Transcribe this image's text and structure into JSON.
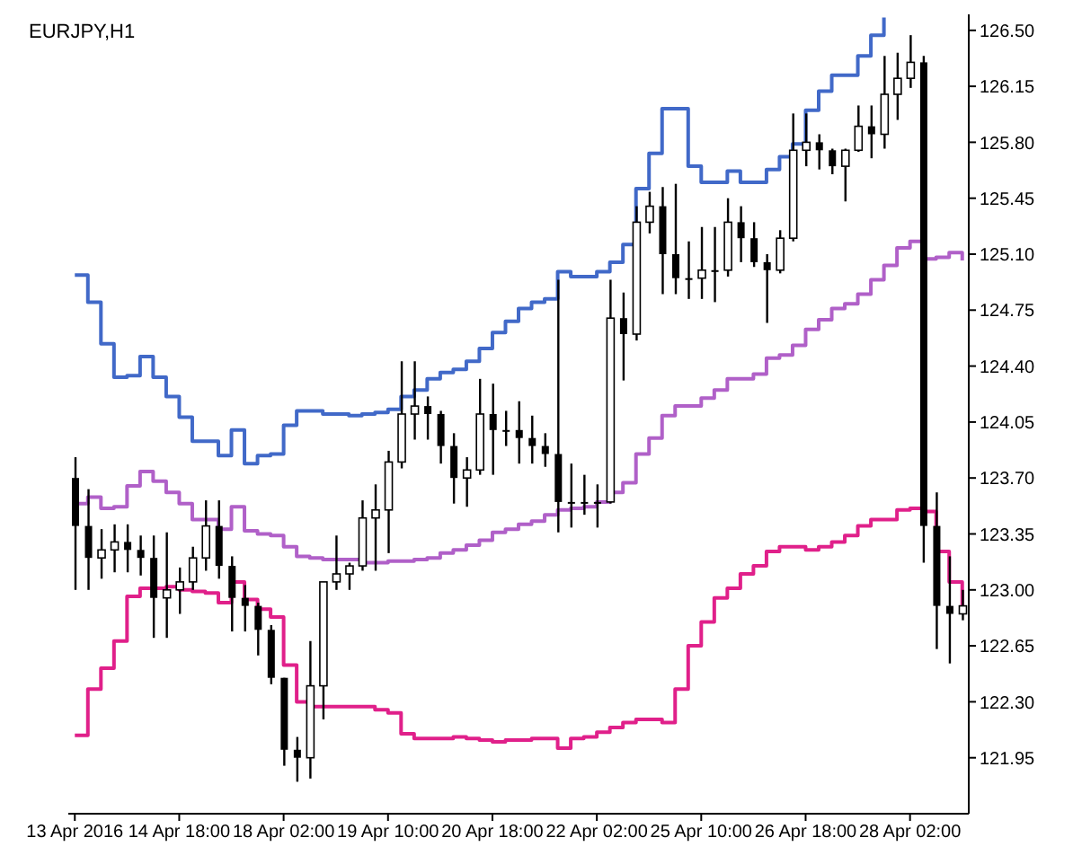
{
  "chart_data": {
    "type": "candlestick",
    "title": "EURJPY,H1",
    "color": "#000000",
    "categories": [
      "13 Apr 2016",
      null,
      null,
      null,
      null,
      null,
      null,
      null,
      "14 Apr 18:00",
      null,
      null,
      null,
      null,
      null,
      null,
      null,
      "18 Apr 02:00",
      null,
      null,
      null,
      null,
      null,
      null,
      null,
      "19 Apr 10:00",
      null,
      null,
      null,
      null,
      null,
      null,
      null,
      "20 Apr 18:00",
      null,
      null,
      null,
      null,
      null,
      null,
      null,
      "22 Apr 02:00",
      null,
      null,
      null,
      null,
      null,
      null,
      null,
      "25 Apr 10:00",
      null,
      null,
      null,
      null,
      null,
      null,
      null,
      "26 Apr 18:00",
      null,
      null,
      null,
      null,
      null,
      null,
      null,
      "28 Apr 02:00",
      null,
      null,
      null,
      null
    ],
    "ohlc": [
      [
        123.7,
        123.83,
        123.0,
        123.4
      ],
      [
        123.4,
        123.63,
        123.0,
        123.2
      ],
      [
        123.2,
        123.38,
        123.07,
        123.25
      ],
      [
        123.25,
        123.41,
        123.11,
        123.3
      ],
      [
        123.3,
        123.41,
        123.11,
        123.25
      ],
      [
        123.25,
        123.34,
        123.09,
        123.2
      ],
      [
        123.2,
        123.34,
        122.7,
        122.95
      ],
      [
        122.95,
        123.36,
        122.7,
        123.0
      ],
      [
        123.0,
        123.14,
        122.85,
        123.05
      ],
      [
        123.05,
        123.27,
        123.0,
        123.2
      ],
      [
        123.2,
        123.56,
        123.12,
        123.4
      ],
      [
        123.4,
        123.56,
        123.07,
        123.15
      ],
      [
        123.15,
        123.21,
        122.74,
        122.95
      ],
      [
        122.95,
        123.03,
        122.74,
        122.9
      ],
      [
        122.9,
        122.92,
        122.59,
        122.75
      ],
      [
        122.75,
        122.78,
        122.41,
        122.45
      ],
      [
        122.45,
        122.45,
        121.9,
        122.0
      ],
      [
        122.0,
        122.08,
        121.8,
        121.95
      ],
      [
        121.95,
        122.68,
        121.82,
        122.4
      ],
      [
        122.4,
        123.05,
        122.19,
        123.05
      ],
      [
        123.05,
        123.34,
        123.0,
        123.1
      ],
      [
        123.1,
        123.17,
        123.0,
        123.15
      ],
      [
        123.15,
        123.56,
        123.12,
        123.45
      ],
      [
        123.45,
        123.66,
        123.12,
        123.5
      ],
      [
        123.5,
        123.87,
        123.23,
        123.8
      ],
      [
        123.8,
        124.43,
        123.76,
        124.1
      ],
      [
        124.1,
        124.43,
        123.94,
        124.15
      ],
      [
        124.15,
        124.21,
        123.94,
        124.1
      ],
      [
        124.1,
        124.12,
        123.79,
        123.9
      ],
      [
        123.9,
        123.98,
        123.54,
        123.7
      ],
      [
        123.7,
        123.83,
        123.52,
        123.75
      ],
      [
        123.75,
        124.32,
        123.72,
        124.1
      ],
      [
        124.1,
        124.29,
        123.72,
        124.0
      ],
      [
        124.0,
        124.12,
        123.9,
        124.0
      ],
      [
        124.0,
        124.18,
        123.79,
        123.95
      ],
      [
        123.95,
        124.09,
        123.79,
        123.9
      ],
      [
        123.9,
        123.98,
        123.77,
        123.85
      ],
      [
        123.85,
        124.94,
        123.36,
        123.55
      ],
      [
        123.55,
        123.79,
        123.39,
        123.55
      ],
      [
        123.55,
        123.72,
        123.47,
        123.55
      ],
      [
        123.55,
        123.66,
        123.39,
        123.55
      ],
      [
        123.55,
        124.94,
        123.54,
        124.7
      ],
      [
        124.7,
        124.86,
        124.31,
        124.6
      ],
      [
        124.6,
        125.4,
        124.56,
        125.3
      ],
      [
        125.3,
        125.49,
        125.23,
        125.4
      ],
      [
        125.4,
        125.52,
        124.85,
        125.1
      ],
      [
        125.1,
        125.54,
        124.85,
        124.95
      ],
      [
        124.95,
        125.18,
        124.82,
        124.95
      ],
      [
        124.95,
        125.27,
        124.82,
        125.0
      ],
      [
        125.0,
        125.27,
        124.8,
        125.0
      ],
      [
        125.0,
        125.45,
        124.96,
        125.3
      ],
      [
        125.3,
        125.4,
        125.05,
        125.2
      ],
      [
        125.2,
        125.3,
        125.02,
        125.05
      ],
      [
        125.05,
        125.1,
        124.67,
        125.0
      ],
      [
        125.0,
        125.25,
        124.98,
        125.2
      ],
      [
        125.2,
        125.98,
        125.18,
        125.75
      ],
      [
        125.75,
        125.98,
        125.65,
        125.8
      ],
      [
        125.8,
        125.85,
        125.63,
        125.75
      ],
      [
        125.75,
        125.76,
        125.6,
        125.65
      ],
      [
        125.65,
        125.76,
        125.43,
        125.75
      ],
      [
        125.75,
        126.03,
        125.74,
        125.9
      ],
      [
        125.9,
        126.03,
        125.7,
        125.85
      ],
      [
        125.85,
        126.34,
        125.76,
        126.1
      ],
      [
        126.1,
        126.36,
        125.94,
        126.2
      ],
      [
        126.2,
        126.47,
        126.14,
        126.3
      ],
      [
        126.3,
        126.34,
        123.17,
        123.4
      ],
      [
        123.4,
        123.61,
        122.63,
        122.9
      ],
      [
        122.9,
        123.21,
        122.54,
        122.85
      ],
      [
        122.85,
        123.0,
        122.81,
        122.9
      ]
    ],
    "series": [
      {
        "type": "step",
        "color": "#4169c8",
        "values": [
          124.97,
          124.8,
          124.54,
          124.33,
          124.34,
          124.46,
          124.33,
          124.21,
          124.08,
          123.93,
          123.93,
          123.84,
          124.0,
          123.79,
          123.84,
          123.85,
          124.03,
          124.12,
          124.12,
          124.1,
          124.1,
          124.09,
          124.1,
          124.11,
          124.13,
          124.21,
          124.25,
          124.32,
          124.36,
          124.38,
          124.43,
          124.51,
          124.61,
          124.68,
          124.76,
          124.8,
          124.82,
          124.99,
          124.96,
          124.96,
          124.99,
          125.05,
          125.16,
          125.51,
          125.73,
          126.01,
          126.01,
          125.65,
          125.55,
          125.55,
          125.62,
          125.55,
          125.55,
          125.63,
          125.71,
          125.79,
          126.0,
          126.12,
          126.22,
          126.22,
          126.34,
          126.47,
          126.58,
          null,
          null,
          null,
          null,
          null,
          null
        ]
      },
      {
        "type": "step",
        "color": "#b060c8",
        "values": [
          123.54,
          123.58,
          123.51,
          123.52,
          123.65,
          123.74,
          123.68,
          123.61,
          123.54,
          123.44,
          123.44,
          123.38,
          123.52,
          123.37,
          123.35,
          123.34,
          123.27,
          123.21,
          123.2,
          123.19,
          123.19,
          123.19,
          123.17,
          123.17,
          123.18,
          123.18,
          123.19,
          123.2,
          123.23,
          123.25,
          123.28,
          123.31,
          123.36,
          123.38,
          123.41,
          123.43,
          123.47,
          123.5,
          123.51,
          123.52,
          123.55,
          123.61,
          123.67,
          123.85,
          123.95,
          124.09,
          124.15,
          124.15,
          124.2,
          124.25,
          124.32,
          124.32,
          124.35,
          124.45,
          124.47,
          124.53,
          124.63,
          124.69,
          124.76,
          124.79,
          124.85,
          124.94,
          125.03,
          125.14,
          125.18,
          125.07,
          125.08,
          125.11,
          125.06
        ]
      },
      {
        "type": "step",
        "color": "#e0208a",
        "values": [
          122.09,
          122.38,
          122.51,
          122.68,
          122.96,
          123.01,
          123.01,
          123.02,
          123.0,
          122.99,
          122.98,
          122.92,
          123.05,
          122.94,
          122.88,
          122.83,
          122.53,
          122.3,
          122.27,
          122.27,
          122.27,
          122.27,
          122.27,
          122.25,
          122.23,
          122.1,
          122.07,
          122.07,
          122.07,
          122.08,
          122.07,
          122.06,
          122.05,
          122.06,
          122.06,
          122.07,
          122.07,
          122.01,
          122.07,
          122.08,
          122.11,
          122.14,
          122.17,
          122.19,
          122.19,
          122.17,
          122.38,
          122.65,
          122.8,
          122.95,
          123.01,
          123.1,
          123.15,
          123.24,
          123.27,
          123.27,
          123.25,
          123.27,
          123.3,
          123.34,
          123.4,
          123.44,
          123.44,
          123.5,
          123.51,
          123.49,
          123.24,
          123.05,
          122.89
        ]
      }
    ],
    "ylim": [
      121.6,
      126.6
    ],
    "yticks": [
      121.95,
      {
        "value": 122.3,
        "label": "122.30"
      },
      122.65,
      {
        "value": 123,
        "label": "123.00"
      },
      123.35,
      {
        "value": 123.7,
        "label": "123.70"
      },
      124.05,
      {
        "value": 124.4,
        "label": "124.40"
      },
      124.75,
      {
        "value": 125.1,
        "label": "125.10"
      },
      125.45,
      {
        "value": 125.8,
        "label": "125.80"
      },
      126.15,
      {
        "value": 126.5,
        "label": "126.50"
      }
    ]
  }
}
